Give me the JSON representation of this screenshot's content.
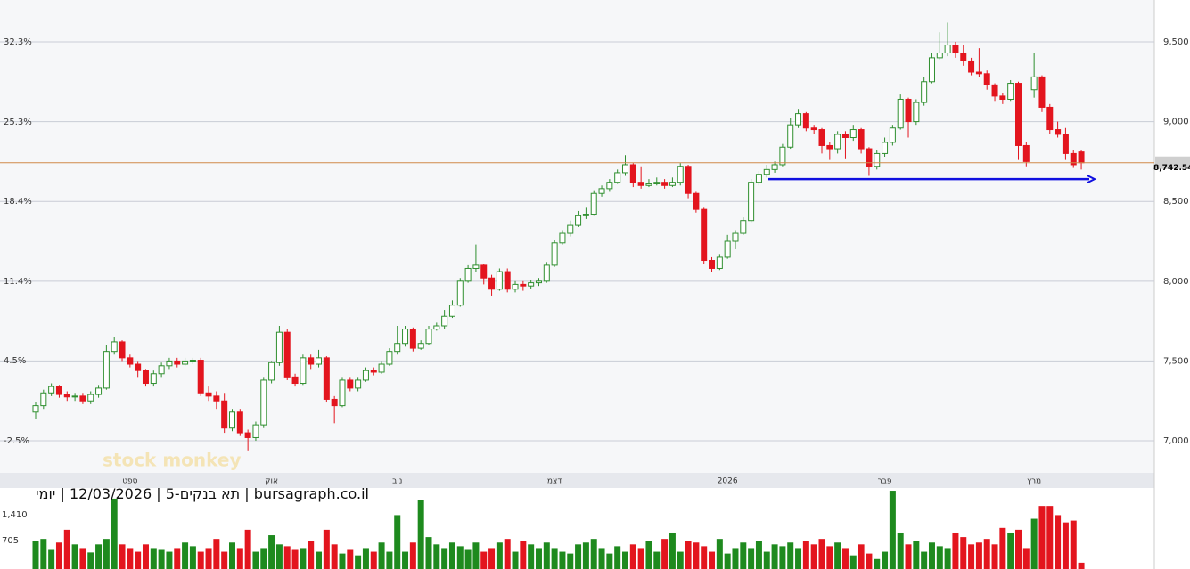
{
  "chart_data": {
    "type": "candlestick",
    "watermark": "stock monkey",
    "info": "bursagraph.co.il | תא בנקים-5 | 12/03/2026 | יומי",
    "up_color": "#2f8f2f",
    "down_color": "#e3151e",
    "grid": true,
    "xticks": [
      {
        "value": 12,
        "label": "ספט"
      },
      {
        "value": 30,
        "label": "אוק"
      },
      {
        "value": 46,
        "label": "נוב"
      },
      {
        "value": 66,
        "label": "דצמ"
      },
      {
        "value": 88,
        "label": "2026"
      },
      {
        "value": 108,
        "label": "פבר"
      },
      {
        "value": 127,
        "label": "מרץ"
      }
    ],
    "ylim": [
      6805,
      9762
    ],
    "yticks": [
      {
        "value": 7000,
        "label": "7,000"
      },
      {
        "value": 7500,
        "label": "7,500"
      },
      {
        "value": 8000,
        "label": "8,000"
      },
      {
        "value": 8500,
        "label": "8,500"
      },
      {
        "value": 9000,
        "label": "9,000"
      },
      {
        "value": 9500,
        "label": "9,500"
      }
    ],
    "y2lim": [
      -5.21,
      35.95
    ],
    "y2ticks": [
      {
        "value": -2.5,
        "label": "-2.5%"
      },
      {
        "value": 4.5,
        "label": "4.5%"
      },
      {
        "value": 11.4,
        "label": "11.4%"
      },
      {
        "value": 18.4,
        "label": "18.4%"
      },
      {
        "value": 25.3,
        "label": "25.3%"
      },
      {
        "value": 32.3,
        "label": "32.3%"
      }
    ],
    "last_price": {
      "value": 8742.54,
      "label": "8,742.54",
      "color": "#d08a4a"
    },
    "support_level": {
      "value": 8640,
      "color": "#1010e0"
    },
    "open": [
      7180,
      7220,
      7300,
      7340,
      7290,
      7275,
      7280,
      7250,
      7290,
      7330,
      7560,
      7620,
      7520,
      7480,
      7440,
      7360,
      7420,
      7470,
      7500,
      7480,
      7500,
      7505,
      7300,
      7280,
      7250,
      7080,
      7180,
      7050,
      7020,
      7100,
      7380,
      7490,
      7680,
      7400,
      7360,
      7520,
      7480,
      7520,
      7260,
      7220,
      7380,
      7330,
      7380,
      7440,
      7430,
      7480,
      7560,
      7610,
      7700,
      7580,
      7610,
      7700,
      7720,
      7780,
      7850,
      8000,
      8080,
      8100,
      8020,
      7950,
      8060,
      7950,
      7980,
      7970,
      7990,
      8000,
      8100,
      8240,
      8300,
      8350,
      8410,
      8420,
      8550,
      8580,
      8620,
      8680,
      8730,
      8620,
      8600,
      8610,
      8620,
      8600,
      8620,
      8720,
      8550,
      8450,
      8130,
      8080,
      8150,
      8250,
      8300,
      8380,
      8620,
      8670,
      8700,
      8730,
      8840,
      8980,
      9050,
      8960,
      8950,
      8850,
      8830,
      8920,
      8900,
      8950,
      8830,
      8720,
      8800,
      8870,
      8960,
      9140,
      9000,
      9120,
      9250,
      9400,
      9430,
      9480,
      9430,
      9380,
      9310,
      9300,
      9230,
      9160,
      9140,
      9240,
      8850,
      9200,
      9280,
      9090,
      8950,
      8920,
      8800,
      8810
    ],
    "high": [
      7240,
      7320,
      7360,
      7350,
      7310,
      7300,
      7300,
      7310,
      7350,
      7600,
      7650,
      7630,
      7540,
      7500,
      7450,
      7440,
      7490,
      7520,
      7520,
      7520,
      7520,
      7520,
      7340,
      7310,
      7300,
      7200,
      7200,
      7070,
      7120,
      7400,
      7500,
      7720,
      7700,
      7420,
      7540,
      7540,
      7570,
      7530,
      7280,
      7400,
      7400,
      7400,
      7460,
      7460,
      7500,
      7580,
      7720,
      7720,
      7710,
      7630,
      7720,
      7740,
      7820,
      7880,
      8020,
      8100,
      8230,
      8110,
      8040,
      8080,
      8080,
      8000,
      8000,
      8010,
      8020,
      8120,
      8260,
      8320,
      8380,
      8440,
      8460,
      8570,
      8600,
      8640,
      8700,
      8790,
      8740,
      8720,
      8640,
      8650,
      8640,
      8650,
      8740,
      8730,
      8560,
      8460,
      8150,
      8170,
      8290,
      8320,
      8400,
      8640,
      8690,
      8730,
      8750,
      8860,
      9020,
      9080,
      9060,
      8980,
      8960,
      8870,
      8940,
      8940,
      8980,
      8960,
      8840,
      8820,
      8900,
      8980,
      9170,
      9150,
      9140,
      9280,
      9430,
      9560,
      9620,
      9500,
      9480,
      9400,
      9460,
      9320,
      9240,
      9180,
      9260,
      9250,
      8870,
      9430,
      9290,
      9110,
      9000,
      8960,
      8820,
      8820
    ],
    "low": [
      7140,
      7200,
      7280,
      7270,
      7250,
      7250,
      7230,
      7230,
      7270,
      7320,
      7540,
      7500,
      7460,
      7400,
      7340,
      7340,
      7400,
      7450,
      7460,
      7470,
      7480,
      7280,
      7250,
      7200,
      7050,
      7060,
      7030,
      6940,
      7000,
      7080,
      7360,
      7470,
      7380,
      7340,
      7350,
      7450,
      7460,
      7240,
      7110,
      7210,
      7310,
      7310,
      7370,
      7410,
      7420,
      7470,
      7540,
      7590,
      7560,
      7570,
      7600,
      7690,
      7700,
      7770,
      7840,
      7990,
      8060,
      7980,
      7910,
      7940,
      7930,
      7930,
      7940,
      7950,
      7970,
      7990,
      8090,
      8230,
      8280,
      8340,
      8390,
      8410,
      8530,
      8560,
      8610,
      8660,
      8590,
      8580,
      8590,
      8600,
      8580,
      8590,
      8600,
      8520,
      8430,
      8110,
      8060,
      8070,
      8140,
      8200,
      8290,
      8370,
      8600,
      8650,
      8680,
      8720,
      8830,
      8960,
      8940,
      8920,
      8800,
      8760,
      8800,
      8770,
      8880,
      8800,
      8660,
      8700,
      8780,
      8850,
      8950,
      8900,
      8980,
      9100,
      9240,
      9390,
      9410,
      9400,
      9350,
      9290,
      9280,
      9200,
      9130,
      9110,
      9130,
      8760,
      8720,
      9150,
      9060,
      8920,
      8900,
      8760,
      8710,
      8700
    ],
    "close": [
      7220,
      7300,
      7340,
      7290,
      7275,
      7280,
      7250,
      7290,
      7330,
      7560,
      7620,
      7520,
      7480,
      7440,
      7360,
      7420,
      7470,
      7500,
      7480,
      7500,
      7505,
      7300,
      7280,
      7250,
      7080,
      7180,
      7050,
      7020,
      7100,
      7380,
      7490,
      7680,
      7400,
      7360,
      7520,
      7480,
      7520,
      7260,
      7220,
      7380,
      7330,
      7380,
      7440,
      7430,
      7480,
      7560,
      7610,
      7700,
      7580,
      7610,
      7700,
      7720,
      7780,
      7850,
      8000,
      8080,
      8100,
      8020,
      7950,
      8060,
      7950,
      7980,
      7970,
      7990,
      8000,
      8100,
      8240,
      8300,
      8350,
      8410,
      8420,
      8550,
      8580,
      8620,
      8680,
      8730,
      8620,
      8600,
      8610,
      8620,
      8600,
      8620,
      8720,
      8550,
      8450,
      8130,
      8080,
      8150,
      8250,
      8300,
      8380,
      8620,
      8670,
      8700,
      8730,
      8840,
      8980,
      9050,
      8960,
      8950,
      8850,
      8830,
      8920,
      8900,
      8950,
      8830,
      8720,
      8800,
      8870,
      8960,
      9140,
      9000,
      9120,
      9250,
      9400,
      9430,
      9480,
      9430,
      9380,
      9310,
      9300,
      9230,
      9160,
      9140,
      9240,
      8850,
      8750,
      9280,
      9090,
      8950,
      8920,
      8800,
      8730,
      8742.54
    ],
    "volume": [
      700,
      750,
      450,
      650,
      1000,
      600,
      500,
      380,
      600,
      750,
      1850,
      600,
      500,
      400,
      600,
      500,
      450,
      400,
      500,
      650,
      550,
      400,
      500,
      750,
      400,
      650,
      500,
      1000,
      400,
      500,
      850,
      600,
      550,
      450,
      500,
      700,
      400,
      1000,
      600,
      350,
      450,
      300,
      500,
      400,
      650,
      400,
      1400,
      400,
      650,
      1800,
      800,
      600,
      500,
      650,
      550,
      450,
      650,
      400,
      500,
      650,
      750,
      400,
      700,
      600,
      500,
      650,
      500,
      400,
      350,
      600,
      650,
      750,
      500,
      350,
      550,
      400,
      600,
      500,
      700,
      400,
      750,
      900,
      400,
      700,
      650,
      550,
      400,
      750,
      350,
      500,
      650,
      500,
      700,
      400,
      600,
      550,
      650,
      500,
      700,
      600,
      750,
      550,
      650,
      500,
      300,
      600,
      350,
      200,
      400,
      2066,
      900,
      600,
      700,
      400,
      650,
      550,
      500,
      900,
      800,
      600,
      650,
      750,
      600,
      1050,
      900,
      1000,
      500,
      1300,
      1650,
      1650,
      1400,
      1200,
      1250,
      100
    ],
    "volume_lim": [
      0,
      2140
    ],
    "volume_ticks": [
      {
        "value": 705,
        "label": "705"
      },
      {
        "value": 1410,
        "label": "1,410"
      }
    ]
  }
}
